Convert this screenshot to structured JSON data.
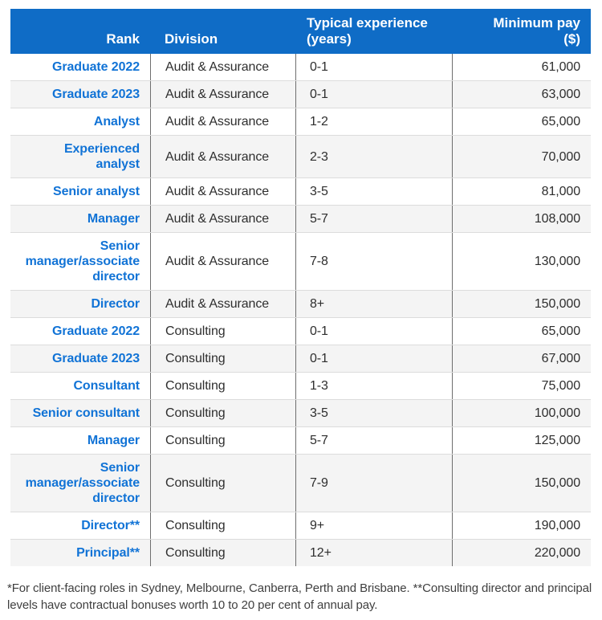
{
  "colors": {
    "header_bg": "#0f6cc6",
    "header_text": "#ffffff",
    "rank_text": "#1173d6",
    "body_text": "#2e2e2e",
    "row_alt_bg": "#f4f4f4",
    "vertical_divider": "#6e6e6e",
    "row_border": "#dcdcdc",
    "footnote_text": "#3f3f3f"
  },
  "chart_data": {
    "type": "table",
    "columns": [
      "Rank",
      "Division",
      "Typical experience (years)",
      "Minimum pay ($)"
    ],
    "header_lines": [
      [
        "Rank"
      ],
      [
        "Division"
      ],
      [
        "Typical experience",
        "(years)"
      ],
      [
        "Minimum pay",
        "($)"
      ]
    ],
    "rows": [
      {
        "rank": "Graduate 2022",
        "division": "Audit & Assurance",
        "experience": "0-1",
        "pay": "61,000"
      },
      {
        "rank": "Graduate 2023",
        "division": "Audit & Assurance",
        "experience": "0-1",
        "pay": "63,000"
      },
      {
        "rank": "Analyst",
        "division": "Audit & Assurance",
        "experience": "1-2",
        "pay": "65,000"
      },
      {
        "rank": "Experienced analyst",
        "division": "Audit & Assurance",
        "experience": "2-3",
        "pay": "70,000"
      },
      {
        "rank": "Senior analyst",
        "division": "Audit & Assurance",
        "experience": "3-5",
        "pay": "81,000"
      },
      {
        "rank": "Manager",
        "division": "Audit & Assurance",
        "experience": "5-7",
        "pay": "108,000"
      },
      {
        "rank": "Senior manager/associate director",
        "division": "Audit & Assurance",
        "experience": "7-8",
        "pay": "130,000"
      },
      {
        "rank": "Director",
        "division": "Audit & Assurance",
        "experience": "8+",
        "pay": "150,000"
      },
      {
        "rank": "Graduate 2022",
        "division": "Consulting",
        "experience": "0-1",
        "pay": "65,000"
      },
      {
        "rank": "Graduate 2023",
        "division": "Consulting",
        "experience": "0-1",
        "pay": "67,000"
      },
      {
        "rank": "Consultant",
        "division": "Consulting",
        "experience": "1-3",
        "pay": "75,000"
      },
      {
        "rank": "Senior consultant",
        "division": "Consulting",
        "experience": "3-5",
        "pay": "100,000"
      },
      {
        "rank": "Manager",
        "division": "Consulting",
        "experience": "5-7",
        "pay": "125,000"
      },
      {
        "rank": "Senior manager/associate director",
        "division": "Consulting",
        "experience": "7-9",
        "pay": "150,000"
      },
      {
        "rank": "Director**",
        "division": "Consulting",
        "experience": "9+",
        "pay": "190,000"
      },
      {
        "rank": "Principal**",
        "division": "Consulting",
        "experience": "12+",
        "pay": "220,000"
      }
    ],
    "footnote": "*For client-facing roles in Sydney, Melbourne, Canberra, Perth and Brisbane. **Consulting director and principal levels have contractual bonuses worth 10 to 20 per cent of annual pay."
  }
}
